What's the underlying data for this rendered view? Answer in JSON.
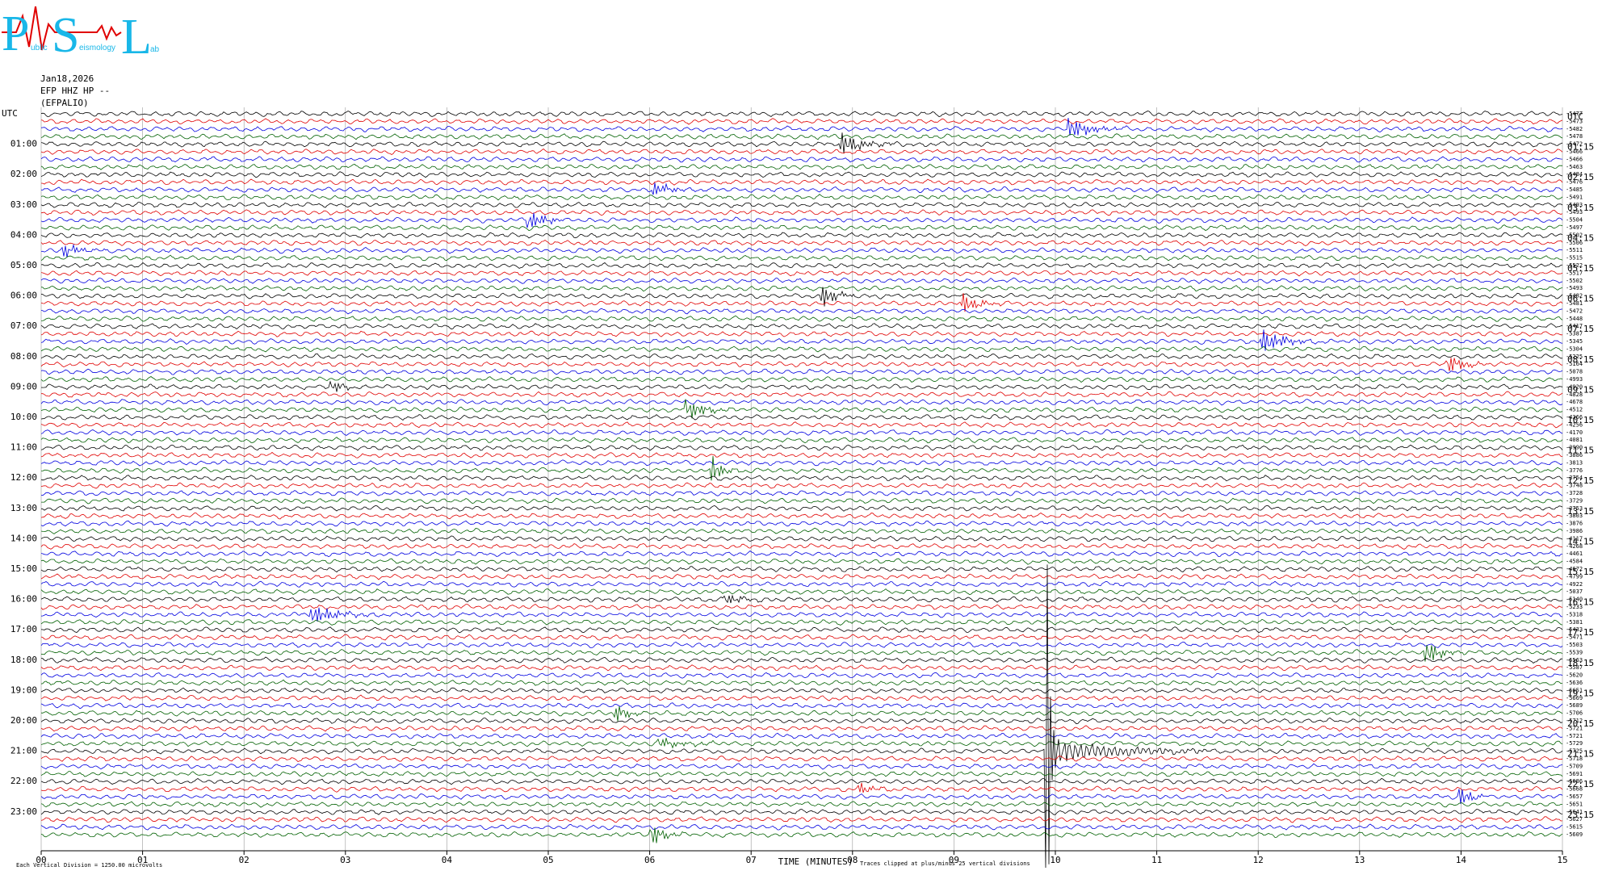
{
  "logo": {
    "letters": [
      "P",
      "S",
      "L"
    ],
    "words": [
      "ublic",
      "eismology",
      "ab"
    ]
  },
  "header": {
    "date": "Jan18,2026",
    "channel": "EFP HHZ HP --",
    "station": "(EFPALIO)"
  },
  "chart_data": {
    "type": "helicorder",
    "left_labels": [
      "UTC",
      "01:00",
      "02:00",
      "03:00",
      "04:00",
      "05:00",
      "06:00",
      "07:00",
      "08:00",
      "09:00",
      "10:00",
      "11:00",
      "12:00",
      "13:00",
      "14:00",
      "15:00",
      "16:00",
      "17:00",
      "18:00",
      "19:00",
      "20:00",
      "21:00",
      "22:00",
      "23:00"
    ],
    "right_labels": [
      "UTC",
      "01:15",
      "02:15",
      "03:15",
      "04:15",
      "05:15",
      "06:15",
      "07:15",
      "08:15",
      "09:15",
      "10:15",
      "11:15",
      "12:15",
      "13:15",
      "14:15",
      "15:15",
      "16:15",
      "17:15",
      "18:15",
      "19:15",
      "20:15",
      "21:15",
      "22:15",
      "23:15"
    ],
    "trace_offsets": [
      -5477,
      -5473,
      -5482,
      -5478,
      -5472,
      -5466,
      -5466,
      -5463,
      -5484,
      -5476,
      -5485,
      -5491,
      -5493,
      -5493,
      -5504,
      -5497,
      -5502,
      -5506,
      -5511,
      -5515,
      -5522,
      -5517,
      -5502,
      -5493,
      -5482,
      -5481,
      -5472,
      -5448,
      -5417,
      -5387,
      -5345,
      -5304,
      -5225,
      -5164,
      -5078,
      -4993,
      -4920,
      -4828,
      -4678,
      -4512,
      -4366,
      -4256,
      -4170,
      -4081,
      -3990,
      -3886,
      -3813,
      -3776,
      -3754,
      -3748,
      -3728,
      -3729,
      -3753,
      -3803,
      -3876,
      -3986,
      -4117,
      -4268,
      -4461,
      -4584,
      -4672,
      -4799,
      -4922,
      -5037,
      -5140,
      -5233,
      -5318,
      -5381,
      -5433,
      -5471,
      -5503,
      -5539,
      -5563,
      -5587,
      -5620,
      -5636,
      -5651,
      -5669,
      -5689,
      -5706,
      -5712,
      -5721,
      -5721,
      -5729,
      -5725,
      -5718,
      -5709,
      -5691,
      -5686,
      -5668,
      -5657,
      -5651,
      -5641,
      -5627,
      -5615,
      -5609
    ],
    "trace_colors": [
      "#000000",
      "#e00000",
      "#0000e0",
      "#006000"
    ],
    "xlim": [
      0,
      15
    ],
    "xticks": [
      {
        "value": 0,
        "label": "00"
      },
      {
        "value": 1,
        "label": "01"
      },
      {
        "value": 2,
        "label": "02"
      },
      {
        "value": 3,
        "label": "03"
      },
      {
        "value": 4,
        "label": "04"
      },
      {
        "value": 5,
        "label": "05"
      },
      {
        "value": 6,
        "label": "06"
      },
      {
        "value": 7,
        "label": "07"
      },
      {
        "value": 8,
        "label": "08"
      },
      {
        "value": 9,
        "label": "09"
      },
      {
        "value": 10,
        "label": "10"
      },
      {
        "value": 11,
        "label": "11"
      },
      {
        "value": 12,
        "label": "12"
      },
      {
        "value": 13,
        "label": "13"
      },
      {
        "value": 14,
        "label": "14"
      },
      {
        "value": 15,
        "label": "15"
      }
    ],
    "grid": true,
    "xlabel": "TIME (MINUTES)",
    "scale_note": "Each Vertical Division = 1250.00 microvolts",
    "clip_note": "Traces clipped at plus/minus 25 vertical divisions"
  }
}
